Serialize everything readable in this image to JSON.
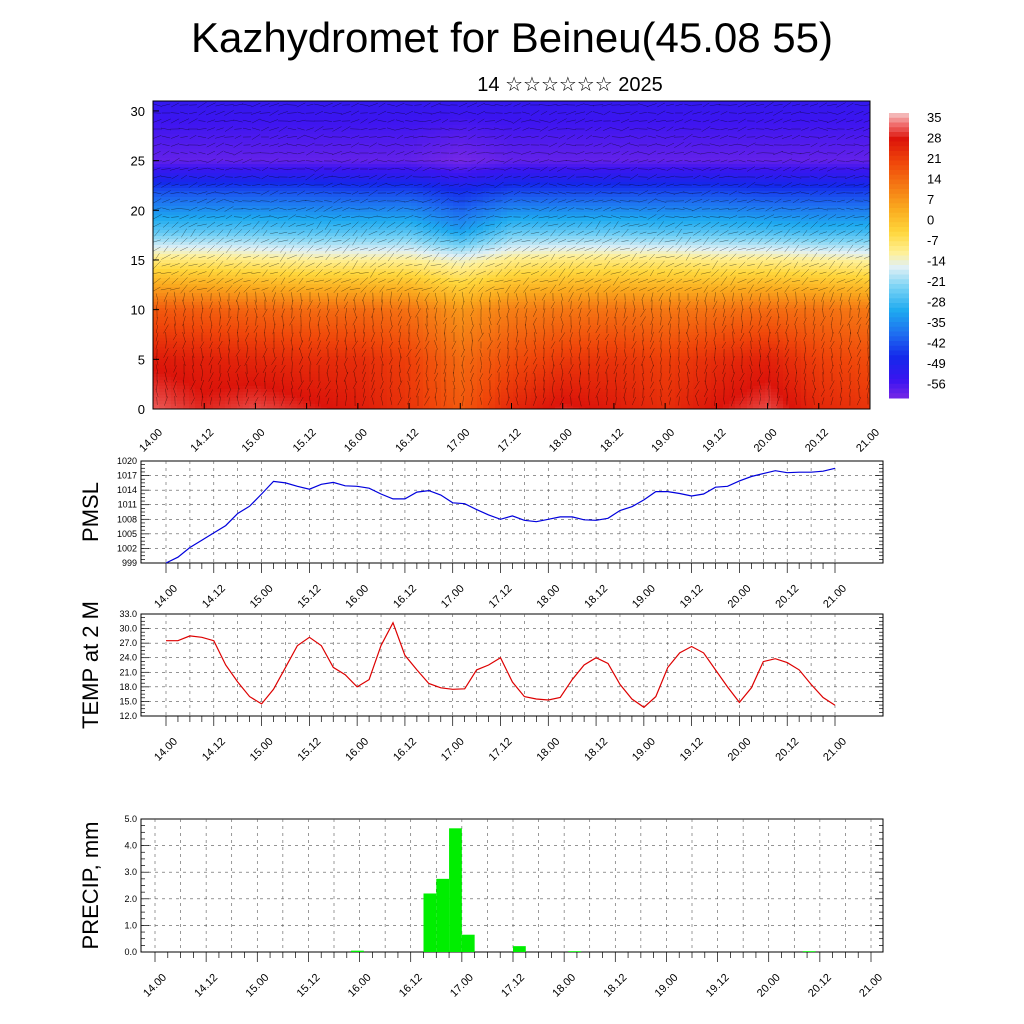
{
  "title": "Kazhydromet for Beineu(45.08 55)",
  "subtitle": "14 ☆☆☆☆☆☆ 2025",
  "colors": {
    "pmsl_line": "#0000dd",
    "temp_line": "#dd0000",
    "precip_bar": "#00ee00",
    "grid": "#555555"
  },
  "chart_data": [
    {
      "type": "heatmap",
      "title": "",
      "ylabel": "",
      "y_ticks": [
        "0",
        "5",
        "10",
        "15",
        "20",
        "25",
        "30"
      ],
      "ylim": [
        0,
        31
      ],
      "x_ticks": [
        "14.00",
        "14.12",
        "15.00",
        "15.12",
        "16.00",
        "16.12",
        "17.00",
        "17.12",
        "18.00",
        "18.12",
        "19.00",
        "19.12",
        "20.00",
        "20.12",
        "21.00"
      ],
      "colorbar_labels": [
        "35",
        "28",
        "21",
        "14",
        "7",
        "0",
        "-7",
        "-14",
        "-21",
        "-28",
        "-35",
        "-42",
        "-49",
        "-56"
      ],
      "colorbar_range": [
        -60,
        38
      ],
      "rows": [
        {
          "y": 0,
          "values": [
            33,
            30,
            32,
            30,
            28,
            24,
            18,
            26,
            30,
            28,
            25,
            29,
            32,
            26,
            24
          ]
        },
        {
          "y": 5,
          "values": [
            28,
            27,
            26,
            25,
            25,
            22,
            15,
            20,
            23,
            24,
            22,
            25,
            27,
            22,
            20
          ]
        },
        {
          "y": 10,
          "values": [
            18,
            17,
            16,
            15,
            15,
            14,
            8,
            12,
            13,
            14,
            13,
            14,
            15,
            14,
            13
          ]
        },
        {
          "y": 15,
          "values": [
            -8,
            -8,
            -9,
            -10,
            -10,
            -10,
            -13,
            -9,
            -8,
            -8,
            -8,
            -9,
            -9,
            -10,
            -11
          ]
        },
        {
          "y": 18,
          "values": [
            -25,
            -25,
            -25,
            -26,
            -26,
            -26,
            -32,
            -25,
            -25,
            -25,
            -26,
            -26,
            -27,
            -28,
            -28
          ]
        },
        {
          "y": 22,
          "values": [
            -42,
            -42,
            -42,
            -42,
            -43,
            -43,
            -46,
            -43,
            -43,
            -43,
            -43,
            -43,
            -44,
            -44,
            -44
          ]
        },
        {
          "y": 25,
          "values": [
            -58,
            -58,
            -58,
            -58,
            -58,
            -58,
            -60,
            -58,
            -58,
            -58,
            -58,
            -58,
            -58,
            -58,
            -58
          ]
        },
        {
          "y": 31,
          "values": [
            -52,
            -52,
            -52,
            -52,
            -52,
            -52,
            -52,
            -52,
            -52,
            -52,
            -52,
            -52,
            -52,
            -52,
            -52
          ]
        }
      ]
    },
    {
      "type": "line",
      "ylabel": "PMSL",
      "ylim": [
        999,
        1020
      ],
      "y_ticks": [
        "999",
        "1002",
        "1005",
        "1008",
        "1011",
        "1014",
        "1017",
        "1020"
      ],
      "x_ticks": [
        "14.00",
        "14.12",
        "15.00",
        "15.12",
        "16.00",
        "16.12",
        "17.00",
        "17.12",
        "18.00",
        "18.12",
        "19.00",
        "19.12",
        "20.00",
        "20.12",
        "21.00"
      ],
      "x": [
        0,
        3,
        6,
        9,
        12,
        15,
        18,
        21,
        24,
        27,
        30,
        33,
        36,
        39,
        42,
        45,
        48,
        51,
        54,
        57,
        60,
        63,
        66,
        69,
        72,
        75,
        78,
        81,
        84,
        87,
        90,
        93,
        96,
        99,
        102,
        105,
        108,
        111,
        114,
        117,
        120,
        123,
        126,
        129,
        132,
        135,
        138,
        141,
        144,
        147,
        150,
        153,
        156,
        159,
        162,
        165,
        168
      ],
      "series": [
        {
          "values": [
            999.0,
            1000.2,
            1002.2,
            1003.7,
            1005.2,
            1006.7,
            1009.2,
            1010.7,
            1013.2,
            1015.8,
            1015.5,
            1014.8,
            1014.2,
            1015.2,
            1015.6,
            1014.9,
            1014.8,
            1014.4,
            1013.2,
            1012.2,
            1012.2,
            1013.6,
            1013.9,
            1013.0,
            1011.4,
            1011.2,
            1010.0,
            1008.9,
            1008.0,
            1008.7,
            1007.8,
            1007.5,
            1008.0,
            1008.5,
            1008.5,
            1007.9,
            1007.8,
            1008.2,
            1009.8,
            1010.6,
            1012.0,
            1013.7,
            1013.7,
            1013.3,
            1012.8,
            1013.2,
            1014.6,
            1014.8,
            1015.9,
            1016.8,
            1017.4,
            1018.0,
            1017.6,
            1017.7,
            1017.7,
            1017.9,
            1018.5
          ]
        }
      ]
    },
    {
      "type": "line",
      "ylabel": "TEMP at 2 M",
      "ylim": [
        12.0,
        33.0
      ],
      "y_ticks": [
        "12.0",
        "15.0",
        "18.0",
        "21.0",
        "24.0",
        "27.0",
        "30.0",
        "33.0"
      ],
      "x_ticks": [
        "14.00",
        "14.12",
        "15.00",
        "15.12",
        "16.00",
        "16.12",
        "17.00",
        "17.12",
        "18.00",
        "18.12",
        "19.00",
        "19.12",
        "20.00",
        "20.12",
        "21.00"
      ],
      "x": [
        0,
        3,
        6,
        9,
        12,
        15,
        18,
        21,
        24,
        27,
        30,
        33,
        36,
        39,
        42,
        45,
        48,
        51,
        54,
        57,
        60,
        63,
        66,
        69,
        72,
        75,
        78,
        81,
        84,
        87,
        90,
        93,
        96,
        99,
        102,
        105,
        108,
        111,
        114,
        117,
        120,
        123,
        126,
        129,
        132,
        135,
        138,
        141,
        144,
        147,
        150,
        153,
        156,
        159,
        162,
        165,
        168
      ],
      "series": [
        {
          "values": [
            27.5,
            27.5,
            28.5,
            28.2,
            27.5,
            22.5,
            19.0,
            16.0,
            14.5,
            17.5,
            22.0,
            26.5,
            28.2,
            26.5,
            22.0,
            20.5,
            18.0,
            19.5,
            26.5,
            31.2,
            24.5,
            21.5,
            18.7,
            17.8,
            17.5,
            17.6,
            21.5,
            22.5,
            24.0,
            19.0,
            16.0,
            15.5,
            15.3,
            15.8,
            19.5,
            22.5,
            24.0,
            22.8,
            18.5,
            15.5,
            13.8,
            16.0,
            22.0,
            25.0,
            26.3,
            25.0,
            21.5,
            18.0,
            14.8,
            17.8,
            23.2,
            23.8,
            23.0,
            21.5,
            18.5,
            15.8,
            14.2
          ]
        }
      ]
    },
    {
      "type": "bar",
      "ylabel": "PRECIP, mm",
      "ylim": [
        0.0,
        5.0
      ],
      "y_ticks": [
        "0.0",
        "1.0",
        "2.0",
        "3.0",
        "4.0",
        "5.0"
      ],
      "x_ticks": [
        "14.00",
        "14.12",
        "15.00",
        "15.12",
        "16.00",
        "16.12",
        "17.00",
        "17.12",
        "18.00",
        "18.12",
        "19.00",
        "19.12",
        "20.00",
        "20.12",
        "21.00"
      ],
      "bars": [
        {
          "start_hour": 46,
          "end_hour": 49,
          "value": 0.05
        },
        {
          "start_hour": 63,
          "end_hour": 66,
          "value": 2.2
        },
        {
          "start_hour": 66,
          "end_hour": 69,
          "value": 2.75
        },
        {
          "start_hour": 69,
          "end_hour": 72,
          "value": 4.65
        },
        {
          "start_hour": 72,
          "end_hour": 75,
          "value": 0.65
        },
        {
          "start_hour": 84,
          "end_hour": 87,
          "value": 0.22
        },
        {
          "start_hour": 97,
          "end_hour": 100,
          "value": 0.03
        },
        {
          "start_hour": 152,
          "end_hour": 155,
          "value": 0.03
        }
      ]
    }
  ]
}
